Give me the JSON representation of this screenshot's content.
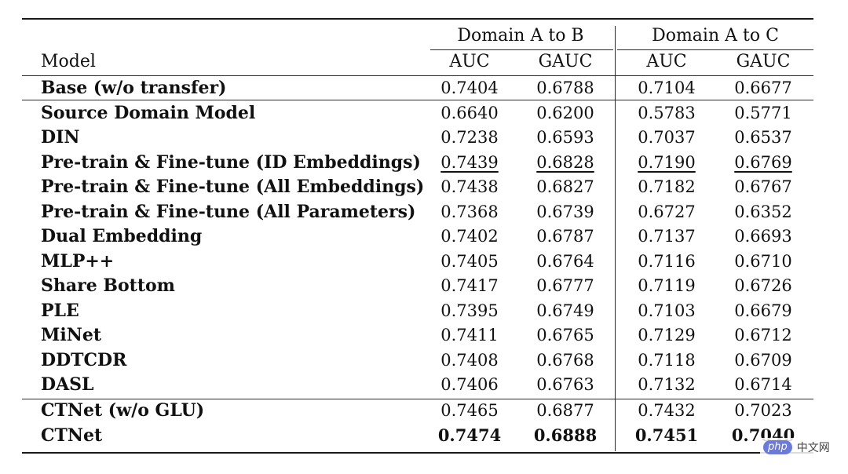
{
  "table": {
    "group_headers": [
      "Domain A to B",
      "Domain A to C"
    ],
    "columns": [
      "Model",
      "AUC",
      "GAUC",
      "AUC",
      "GAUC"
    ],
    "rows": [
      {
        "model": "Base (w/o transfer)",
        "values": [
          "0.7404",
          "0.6788",
          "0.7104",
          "0.6677"
        ]
      },
      {
        "model": "Source Domain Model",
        "values": [
          "0.6640",
          "0.6200",
          "0.5783",
          "0.5771"
        ]
      },
      {
        "model": "DIN",
        "values": [
          "0.7238",
          "0.6593",
          "0.7037",
          "0.6537"
        ]
      },
      {
        "model": "Pre-train & Fine-tune (ID Embeddings)",
        "values": [
          "0.7439",
          "0.6828",
          "0.7190",
          "0.6769"
        ]
      },
      {
        "model": "Pre-train & Fine-tune (All Embeddings)",
        "values": [
          "0.7438",
          "0.6827",
          "0.7182",
          "0.6767"
        ]
      },
      {
        "model": "Pre-train & Fine-tune (All Parameters)",
        "values": [
          "0.7368",
          "0.6739",
          "0.6727",
          "0.6352"
        ]
      },
      {
        "model": "Dual Embedding",
        "values": [
          "0.7402",
          "0.6787",
          "0.7137",
          "0.6693"
        ]
      },
      {
        "model": "MLP++",
        "values": [
          "0.7405",
          "0.6764",
          "0.7116",
          "0.6710"
        ]
      },
      {
        "model": "Share Bottom",
        "values": [
          "0.7417",
          "0.6777",
          "0.7119",
          "0.6726"
        ]
      },
      {
        "model": "PLE",
        "values": [
          "0.7395",
          "0.6749",
          "0.7103",
          "0.6679"
        ]
      },
      {
        "model": "MiNet",
        "values": [
          "0.7411",
          "0.6765",
          "0.7129",
          "0.6712"
        ]
      },
      {
        "model": "DDTCDR",
        "values": [
          "0.7408",
          "0.6768",
          "0.7118",
          "0.6709"
        ]
      },
      {
        "model": "DASL",
        "values": [
          "0.7406",
          "0.6763",
          "0.7132",
          "0.6714"
        ]
      },
      {
        "model": "CTNet (w/o GLU)",
        "values": [
          "0.7465",
          "0.6877",
          "0.7432",
          "0.7023"
        ]
      },
      {
        "model": "CTNet",
        "values": [
          "0.7474",
          "0.6888",
          "0.7451",
          "0.7040"
        ]
      }
    ],
    "underlined_row": 3,
    "bold_row": 14
  },
  "watermark": {
    "logo": "php",
    "text": "中文网"
  }
}
